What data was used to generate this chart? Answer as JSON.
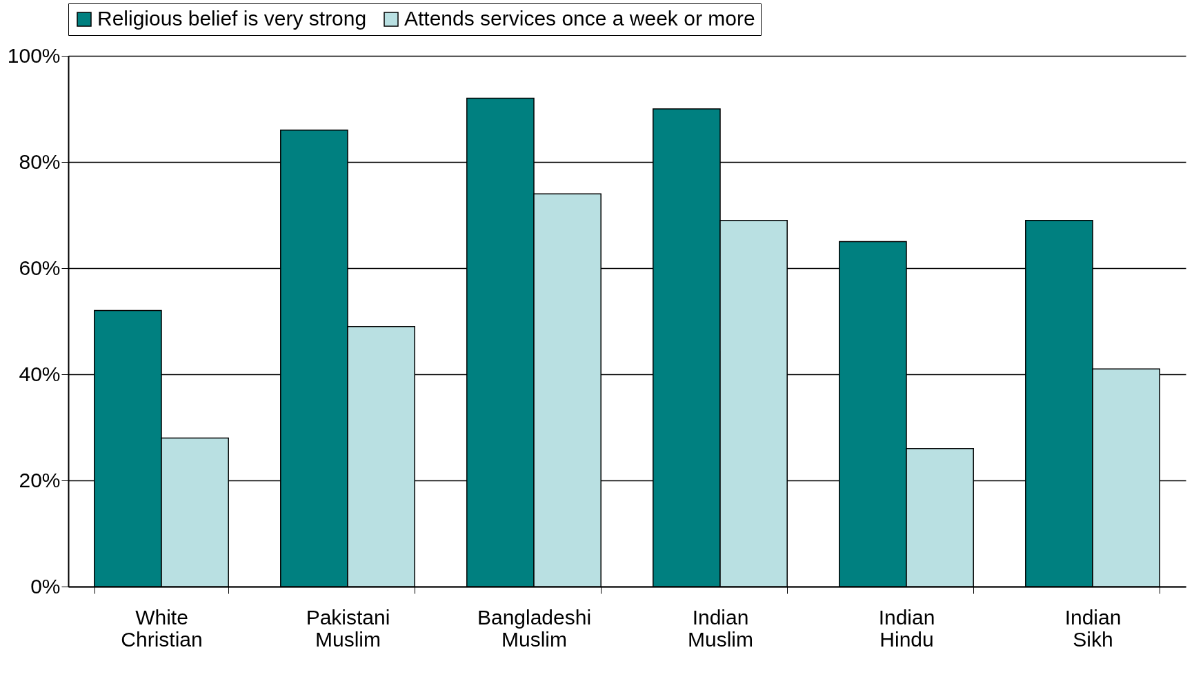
{
  "chart_data": {
    "type": "bar",
    "categories": [
      "White Christian",
      "Pakistani Muslim",
      "Bangladeshi Muslim",
      "Indian Muslim",
      "Indian Hindu",
      "Indian Sikh"
    ],
    "series": [
      {
        "name": "Religious belief is very strong",
        "color": "#008080",
        "values": [
          52,
          86,
          92,
          90,
          65,
          69
        ]
      },
      {
        "name": "Attends services once a week or more",
        "color": "#b9e0e2",
        "values": [
          28,
          49,
          74,
          69,
          26,
          41
        ]
      }
    ],
    "ylim": [
      0,
      100
    ],
    "yticks": [
      {
        "value": 0,
        "label": "0%"
      },
      {
        "value": 20,
        "label": "20%"
      },
      {
        "value": 40,
        "label": "40%"
      },
      {
        "value": 60,
        "label": "60%"
      },
      {
        "value": 80,
        "label": "80%"
      },
      {
        "value": 100,
        "label": "100%"
      }
    ],
    "grid": "y",
    "legend": "top"
  }
}
